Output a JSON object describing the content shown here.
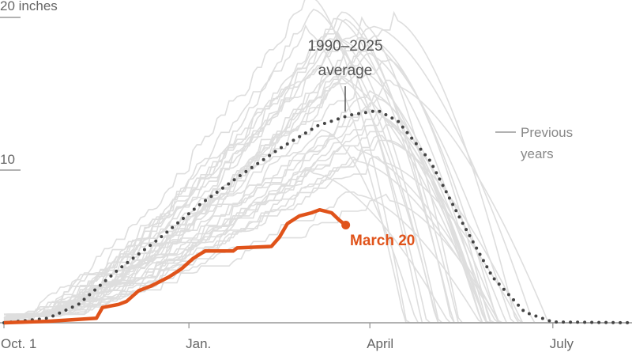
{
  "chart_data": {
    "type": "line",
    "xlabel": "",
    "ylabel": "",
    "y_unit_label": "20 inches",
    "ylim": [
      0,
      21
    ],
    "yticks": [
      {
        "value": 10,
        "label": "10"
      },
      {
        "value": 20,
        "label": "20 inches"
      }
    ],
    "x_range": [
      "10-01",
      "08-10"
    ],
    "xticks": [
      {
        "date": "10-01",
        "label": "Oct. 1"
      },
      {
        "date": "01-01",
        "label": "Jan."
      },
      {
        "date": "04-01",
        "label": "April"
      },
      {
        "date": "07-01",
        "label": "July"
      }
    ],
    "grid": false,
    "colors": {
      "current": "#e0531a",
      "average": "#444444",
      "previous": "#dedede",
      "axis": "#999999"
    },
    "series": [
      {
        "name": "1990–2025 average",
        "style": "dotted",
        "points": [
          [
            "10-01",
            0
          ],
          [
            "10-23",
            0.3
          ],
          [
            "11-07",
            1.2
          ],
          [
            "11-27",
            3.5
          ],
          [
            "12-17",
            5.5
          ],
          [
            "01-06",
            7.7
          ],
          [
            "01-26",
            9.6
          ],
          [
            "02-15",
            11.4
          ],
          [
            "03-06",
            12.9
          ],
          [
            "03-22",
            13.6
          ],
          [
            "04-05",
            13.9
          ],
          [
            "04-15",
            13.2
          ],
          [
            "05-01",
            10.6
          ],
          [
            "05-16",
            6.8
          ],
          [
            "06-01",
            3.0
          ],
          [
            "06-17",
            0.7
          ],
          [
            "07-01",
            0.05
          ],
          [
            "08-10",
            0
          ]
        ]
      },
      {
        "name": "March 20",
        "style": "solid-bold",
        "points": [
          [
            "10-01",
            0
          ],
          [
            "10-23",
            0.1
          ],
          [
            "11-16",
            0.3
          ],
          [
            "11-19",
            1.0
          ],
          [
            "11-27",
            1.2
          ],
          [
            "12-01",
            1.4
          ],
          [
            "12-07",
            2.1
          ],
          [
            "12-13",
            2.4
          ],
          [
            "12-22",
            3.0
          ],
          [
            "12-28",
            3.5
          ],
          [
            "01-03",
            4.2
          ],
          [
            "01-09",
            4.7
          ],
          [
            "01-23",
            4.7
          ],
          [
            "01-25",
            4.9
          ],
          [
            "02-11",
            5.0
          ],
          [
            "02-15",
            5.6
          ],
          [
            "02-19",
            6.5
          ],
          [
            "02-25",
            7.0
          ],
          [
            "03-03",
            7.2
          ],
          [
            "03-07",
            7.4
          ],
          [
            "03-13",
            7.2
          ],
          [
            "03-17",
            6.7
          ],
          [
            "03-20",
            6.4
          ]
        ]
      }
    ],
    "previous_years_label": "Previous years",
    "annotations": {
      "average_line1": "1990–2025",
      "average_line2": "average",
      "previous_line1": "Previous",
      "previous_line2": "years",
      "current": "March 20"
    }
  }
}
